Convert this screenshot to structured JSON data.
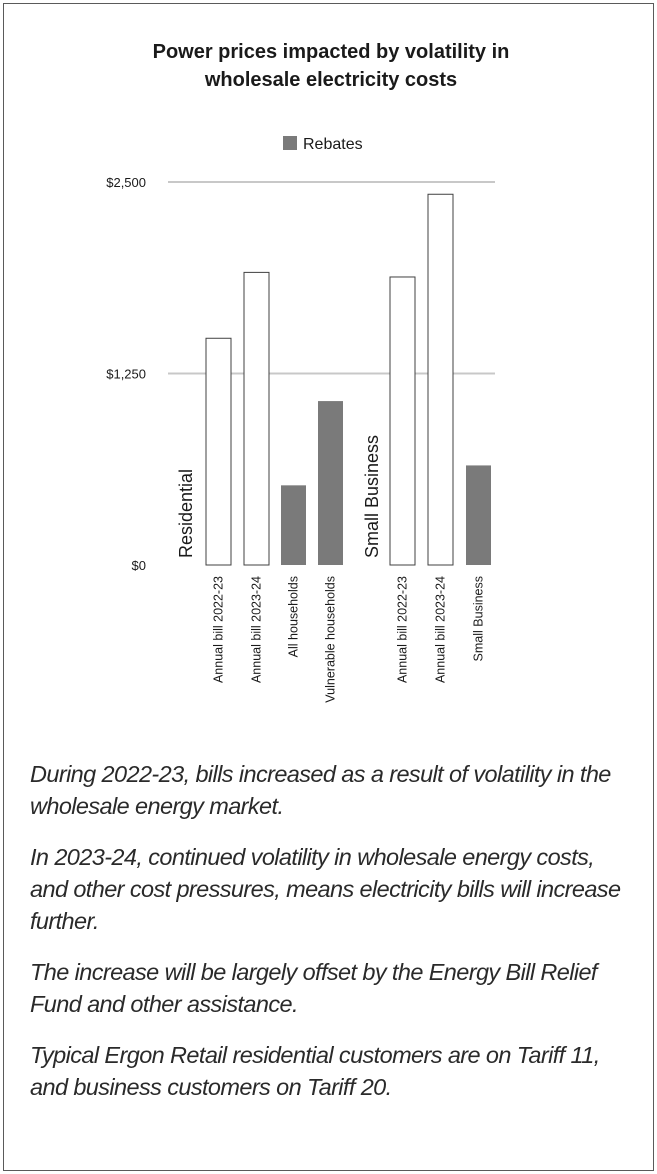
{
  "chart_data": {
    "type": "bar",
    "title_lines": [
      "Power prices impacted by volatility in",
      "wholesale electricity costs"
    ],
    "legend": [
      {
        "label": "Rebates",
        "color": "#7a7a7a"
      }
    ],
    "yticks": [
      "$2,500",
      "$1,250",
      "$0"
    ],
    "ylim": [
      0,
      2500
    ],
    "groups": [
      {
        "label": "Residential",
        "bars": [
          {
            "category": "Annual bill 2022-23",
            "value": 1480,
            "kind": "bill"
          },
          {
            "category": "Annual bill 2023-24",
            "value": 1910,
            "kind": "bill"
          },
          {
            "category": "All households",
            "value": 520,
            "kind": "rebate"
          },
          {
            "category": "Vulnerable households",
            "value": 1070,
            "kind": "rebate"
          }
        ]
      },
      {
        "label": "Small Business",
        "bars": [
          {
            "category": "Annual bill 2022-23",
            "value": 1880,
            "kind": "bill"
          },
          {
            "category": "Annual bill 2023-24",
            "value": 2420,
            "kind": "bill"
          },
          {
            "category": "Small Business",
            "value": 650,
            "kind": "rebate"
          }
        ]
      }
    ],
    "colors": {
      "bill_fill": "#ffffff",
      "bill_stroke": "#404040",
      "rebate": "#7a7a7a",
      "grid": "#c8c8c8"
    },
    "grid": true,
    "legend_position": "top-center"
  },
  "notes": [
    "During 2022-23, bills increased as a result of volatility in the wholesale energy market.",
    "In 2023-24, continued volatility in wholesale energy costs, and other cost pressures, means electricity bills will increase further.",
    "The increase will be largely offset by the Energy Bill Relief Fund and other assistance.",
    "Typical Ergon Retail residential customers are on Tariff 11, and business customers on Tariff 20."
  ]
}
